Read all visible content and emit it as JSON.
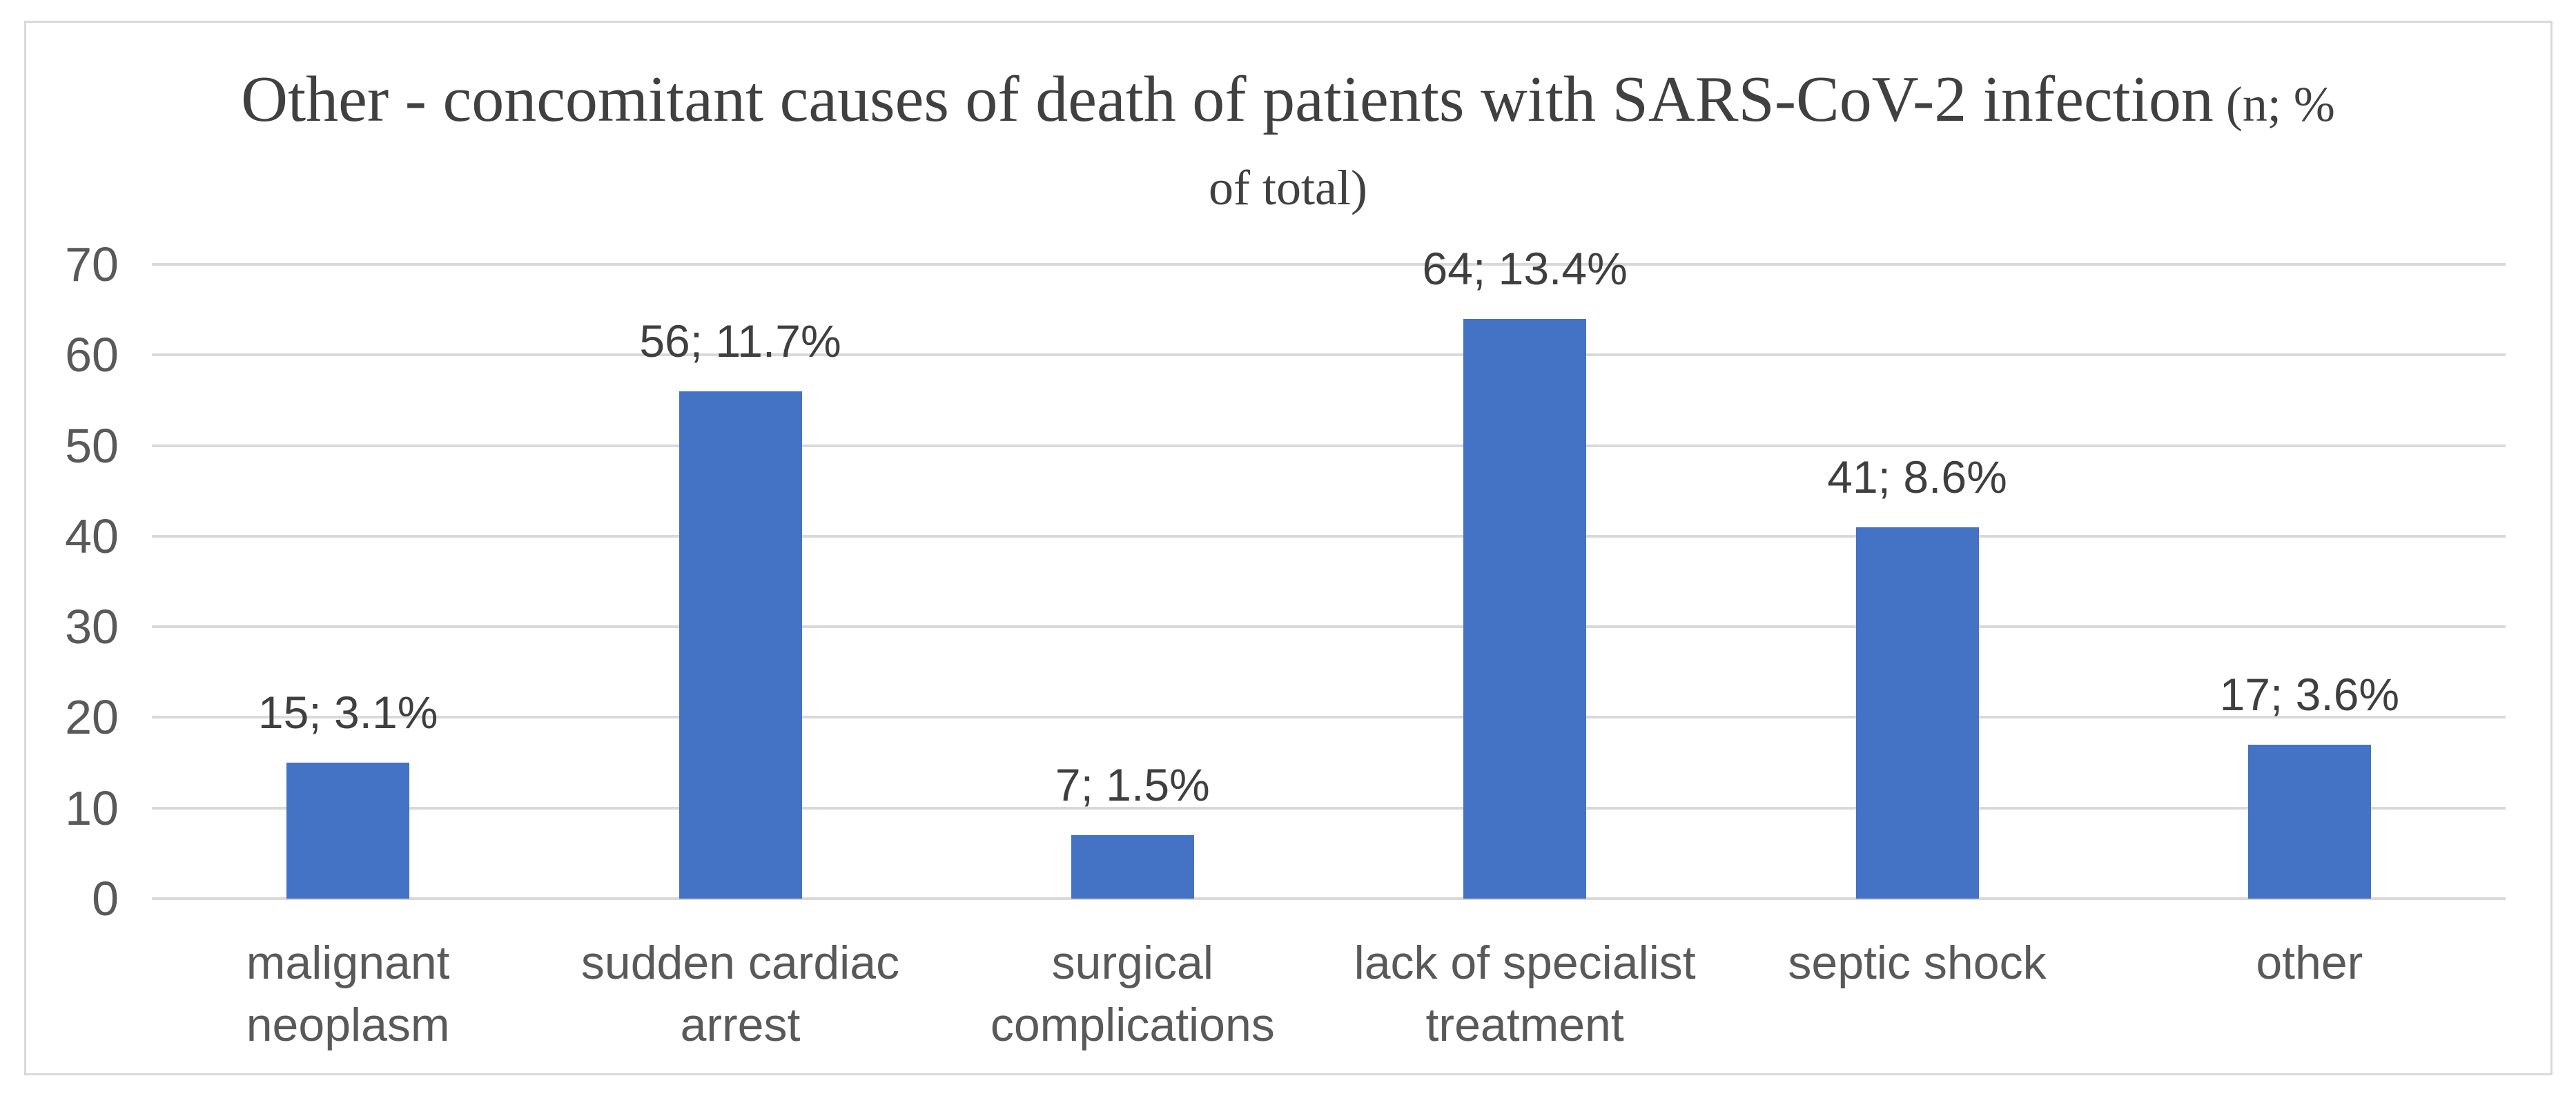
{
  "title": {
    "line1_main": "Other - concomitant causes of death of patients with SARS-CoV-2 infection",
    "line1_suffix": " (n; %",
    "line2": "of total)"
  },
  "colors": {
    "bar": "#4472C4",
    "gridline": "#D9D9D9",
    "chart_border": "#D9D9D9",
    "title_text": "#404040",
    "data_label": "#3F3F3F",
    "axis_text": "#595959",
    "background": "#FFFFFF"
  },
  "chart_data": {
    "type": "bar",
    "title": "Other - concomitant causes of death of patients with SARS-CoV-2 infection (n; % of total)",
    "categories": [
      "malignant neoplasm",
      "sudden cardiac arrest",
      "surgical complications",
      "lack of specialist treatment",
      "septic shock",
      "other"
    ],
    "category_display_lines": [
      [
        "malignant",
        "neoplasm"
      ],
      [
        "sudden cardiac",
        "arrest"
      ],
      [
        "surgical",
        "complications"
      ],
      [
        "lack of specialist",
        "treatment"
      ],
      [
        "septic shock"
      ],
      [
        "other"
      ]
    ],
    "values": [
      15,
      56,
      7,
      64,
      41,
      17
    ],
    "percents": [
      3.1,
      11.7,
      1.5,
      13.4,
      8.6,
      3.6
    ],
    "data_labels": [
      "15; 3.1%",
      "56; 11.7%",
      "7; 1.5%",
      "64; 13.4%",
      "41; 8.6%",
      "17; 3.6%"
    ],
    "y_ticks": [
      0,
      10,
      20,
      30,
      40,
      50,
      60,
      70
    ],
    "ylim": [
      0,
      70
    ],
    "xlabel": "",
    "ylabel": "",
    "grid": true,
    "legend_position": "none"
  }
}
